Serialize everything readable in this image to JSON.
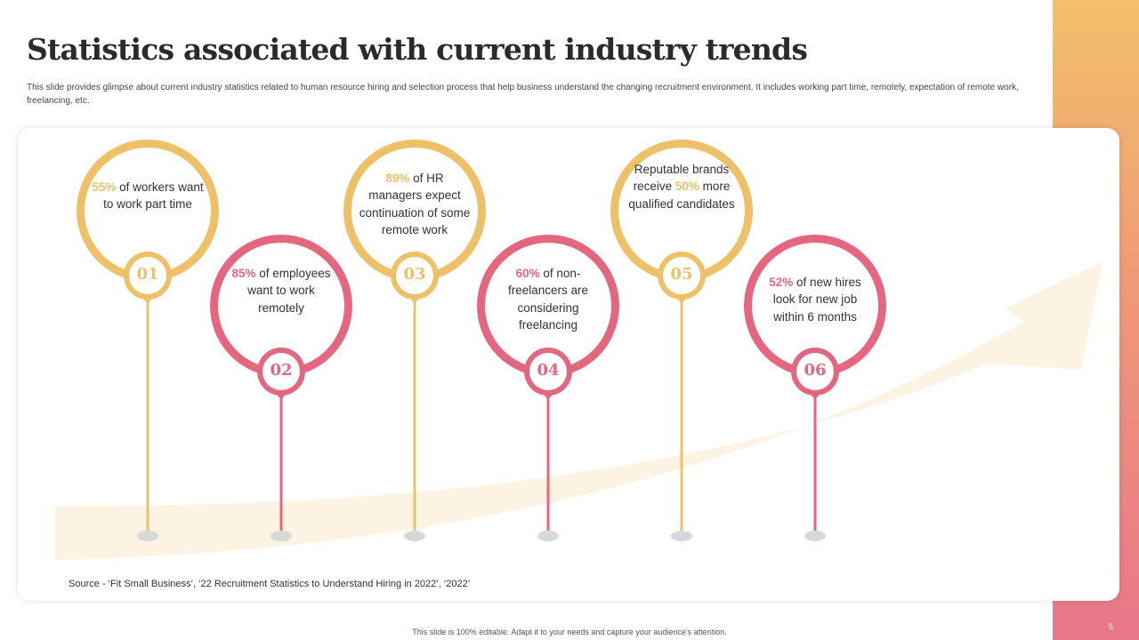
{
  "title": "Statistics associated with current industry trends",
  "subtitle": "This slide provides glimpse about current industry statistics related to human resource hiring and selection process that help business understand the changing recruitment environment. It includes working part time, remotely, expectation of remote work, freelancing, etc.",
  "colors": {
    "gold": "#eec068",
    "pink": "#e4667f",
    "arrow": "#fdf3e3"
  },
  "stats": [
    {
      "number": "01",
      "color": "gold",
      "pct": "55%",
      "lines_before": "",
      "lines_after": " of workers want to work part time"
    },
    {
      "number": "02",
      "color": "pink",
      "pct": "85%",
      "lines_before": "",
      "lines_after": " of employees want to work remotely"
    },
    {
      "number": "03",
      "color": "gold",
      "pct": "89%",
      "lines_before": "",
      "lines_after": " of HR managers expect continuation of some remote work"
    },
    {
      "number": "04",
      "color": "pink",
      "pct": "60%",
      "lines_before": "",
      "lines_after": " of non-freelancers are considering freelancing"
    },
    {
      "number": "05",
      "color": "gold",
      "pct": "50%",
      "lines_before": "Reputable brands receive ",
      "lines_after": " more qualified candidates"
    },
    {
      "number": "06",
      "color": "pink",
      "pct": "52%",
      "lines_before": "",
      "lines_after": " of new hires look for new job within 6 months"
    }
  ],
  "source": "Source - ‘Fit Small Business’, ‘22 Recruitment Statistics to Understand Hiring in 2022’, ‘2022’",
  "footer": "This slide is 100% editable. Adapt it to your needs and capture your audience's attention.",
  "page_number": "5"
}
